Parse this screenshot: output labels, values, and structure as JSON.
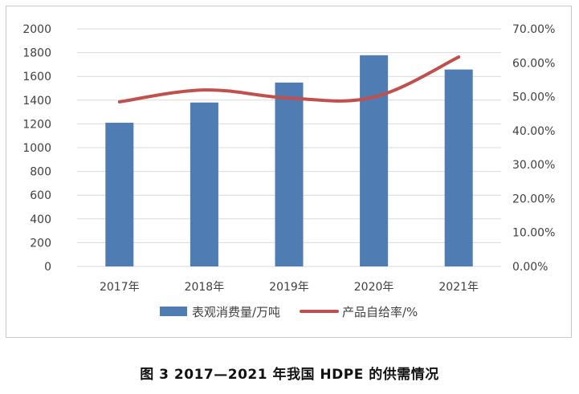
{
  "caption": "图 3  2017—2021 年我国 HDPE 的供需情况",
  "chart_data": {
    "type": "bar",
    "categories": [
      "2017年",
      "2018年",
      "2019年",
      "2020年",
      "2021年"
    ],
    "series": [
      {
        "name": "表观消费量/万吨",
        "type": "bar",
        "axis": "left",
        "values": [
          1210,
          1380,
          1548,
          1778,
          1658
        ],
        "color": "#4f7cb3"
      },
      {
        "name": "产品自给率/%",
        "type": "line",
        "axis": "right",
        "values": [
          48.5,
          52.0,
          49.6,
          49.9,
          61.7
        ],
        "color": "#c0504d"
      }
    ],
    "y_left": {
      "ylim": [
        0,
        2000
      ],
      "ticks": [
        "0",
        "200",
        "400",
        "600",
        "800",
        "1000",
        "1200",
        "1400",
        "1600",
        "1800",
        "2000"
      ]
    },
    "y_right": {
      "ylim": [
        0,
        70
      ],
      "ticks": [
        "0.00%",
        "10.00%",
        "20.00%",
        "30.00%",
        "40.00%",
        "50.00%",
        "60.00%",
        "70.00%"
      ]
    },
    "grid": true,
    "legend_position": "bottom"
  }
}
